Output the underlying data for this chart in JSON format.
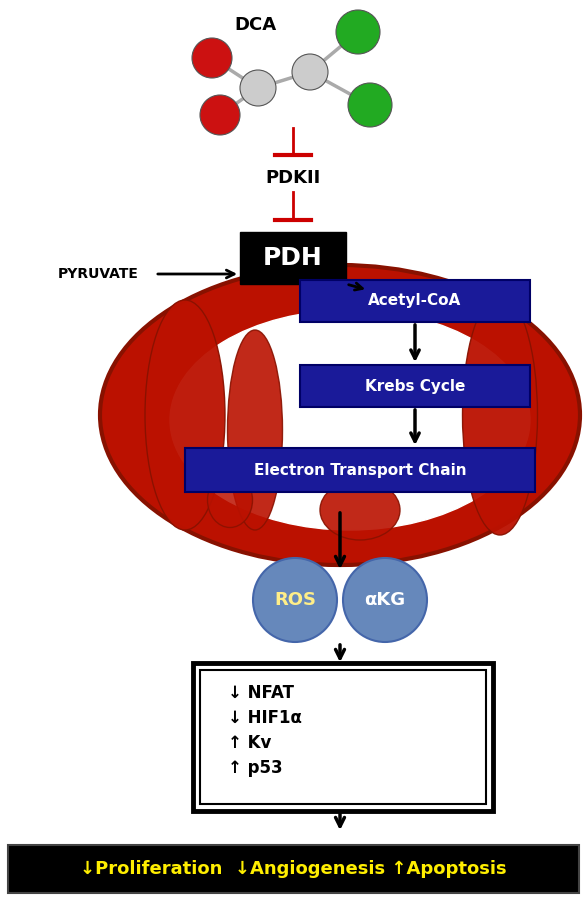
{
  "bg_color": "#ffffff",
  "dca_label": "DCA",
  "pdkii_label": "PDKII",
  "pdh_label": "PDH",
  "pyruvate_label": "PYRUVATE",
  "acetyl_coa_label": "Acetyl-CoA",
  "krebs_label": "Krebs Cycle",
  "etc_label": "Electron Transport Chain",
  "ros_label": "ROS",
  "akg_label": "αKG",
  "box_lines": [
    "↓ NFAT",
    "↓ HIF1α",
    "↑ Kv",
    "↑ p53"
  ],
  "bottom_label": "↓Proliferation  ↓Angiogenesis ↑Apoptosis",
  "blue_box_color": "#1a1a99",
  "blue_box_text_color": "#ffffff",
  "pdh_box_color": "#000000",
  "pdh_text_color": "#ffffff",
  "mito_outer_color": "#bb1100",
  "mito_edge_color": "#881100",
  "ros_akg_color": "#6688bb",
  "inhibit_color": "#cc0000",
  "bottom_bg_color": "#000000",
  "bottom_text_color": "#ffee00",
  "figure_width": 5.87,
  "figure_height": 8.98
}
